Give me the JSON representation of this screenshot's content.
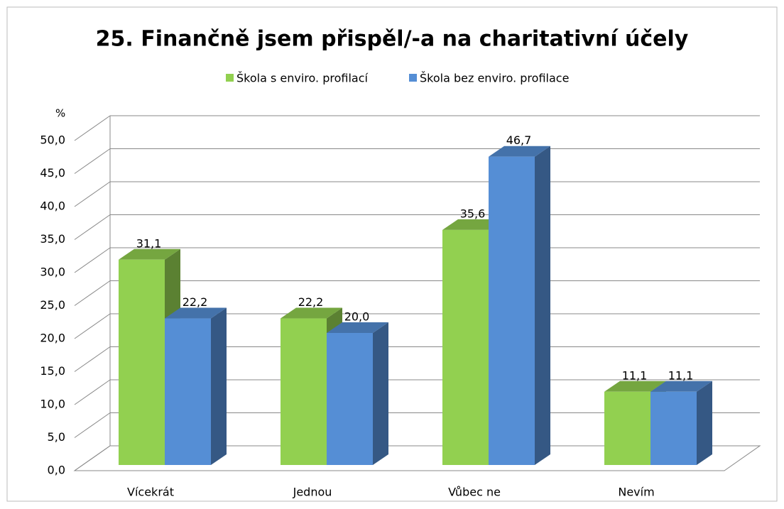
{
  "chart_data": {
    "type": "bar3d",
    "title": "25. Finančně jsem přispěl/-a na charitativní účely",
    "y_label": "%",
    "categories": [
      "Vícekrát",
      "Jednou",
      "Vůbec ne",
      "Nevím"
    ],
    "series": [
      {
        "name": "Škola s enviro. profilací",
        "color": "#92d050",
        "values": [
          31.1,
          22.2,
          35.6,
          11.1
        ],
        "value_labels": [
          "31,1",
          "22,2",
          "35,6",
          "11,1"
        ]
      },
      {
        "name": "Škola bez enviro. profilace",
        "color": "#558ed5",
        "values": [
          22.2,
          20.0,
          46.7,
          11.1
        ],
        "value_labels": [
          "22,2",
          "20,0",
          "46,7",
          "11,1"
        ]
      }
    ],
    "ylim": [
      0,
      50
    ],
    "yticks": [
      {
        "value": 0,
        "label": "0,0"
      },
      {
        "value": 5,
        "label": "5,0"
      },
      {
        "value": 10,
        "label": "10,0"
      },
      {
        "value": 15,
        "label": "15,0"
      },
      {
        "value": 20,
        "label": "20,0"
      },
      {
        "value": 25,
        "label": "25,0"
      },
      {
        "value": 30,
        "label": "30,0"
      },
      {
        "value": 35,
        "label": "35,0"
      },
      {
        "value": 40,
        "label": "40,0"
      },
      {
        "value": 45,
        "label": "45,0"
      },
      {
        "value": 50,
        "label": "50,0"
      }
    ],
    "grid": true,
    "legend": "top"
  }
}
